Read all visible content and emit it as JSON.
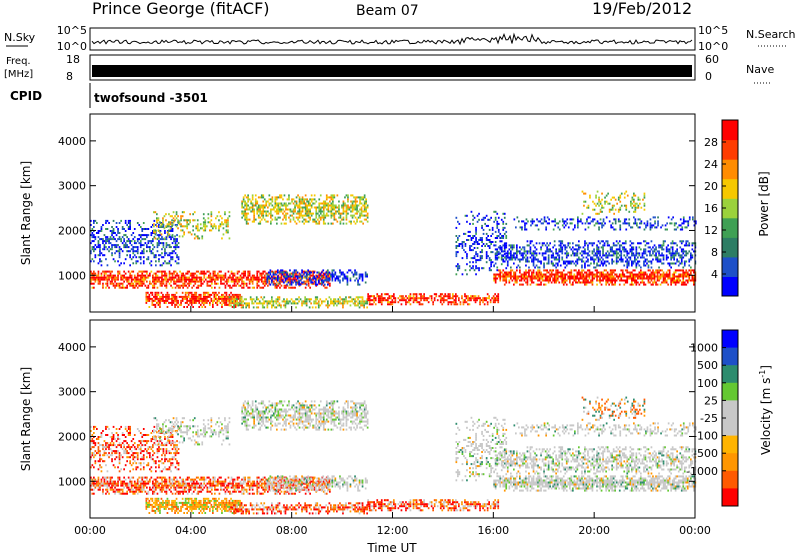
{
  "header": {
    "station": "Prince George (fitACF)",
    "beam": "Beam 07",
    "date": "19/Feb/2012"
  },
  "sky_panel": {
    "left_label": "N.Sky",
    "right_label": "N.Search",
    "left_ticks": [
      "10^5",
      "10^0"
    ],
    "right_ticks": [
      "10^5",
      "10^0"
    ]
  },
  "freq_panel": {
    "left_label_1": "Freq.",
    "left_label_2": "[MHz]",
    "right_label": "Nave",
    "left_ticks": [
      "18",
      "8"
    ],
    "right_ticks": [
      "60",
      "0"
    ]
  },
  "cpid_panel": {
    "label": "CPID",
    "value": "twofsound -3501"
  },
  "colors": {
    "power": [
      "#0000ff",
      "#1e50c8",
      "#2d7d64",
      "#3fa054",
      "#9bd23c",
      "#f5c800",
      "#ff8c00",
      "#ff3c00",
      "#ff0000"
    ],
    "velocity": [
      "#ff0000",
      "#ff5a00",
      "#ff9600",
      "#ffb400",
      "#c8c8c8",
      "#c8c8c8",
      "#64c832",
      "#2d8c6e",
      "#1e50c8",
      "#0000ff"
    ]
  },
  "chart_data": [
    {
      "type": "heatmap",
      "title": "",
      "xlabel": "",
      "ylabel": "Slant Range [km]",
      "xlim": [
        "00:00",
        "24:00"
      ],
      "ylim": [
        180,
        4600
      ],
      "x_ticks": [
        "00:00",
        "04:00",
        "08:00",
        "12:00",
        "16:00",
        "20:00",
        "00:00"
      ],
      "y_ticks": [
        1000,
        2000,
        3000,
        4000
      ],
      "colorbar": {
        "label": "Power [dB]",
        "range": [
          0,
          32
        ],
        "ticks": [
          4,
          8,
          12,
          16,
          20,
          24,
          28
        ]
      }
    },
    {
      "type": "heatmap",
      "title": "",
      "xlabel": "Time UT",
      "ylabel": "Slant Range [km]",
      "xlim": [
        "00:00",
        "24:00"
      ],
      "ylim": [
        180,
        4600
      ],
      "x_ticks": [
        "00:00",
        "04:00",
        "08:00",
        "12:00",
        "16:00",
        "20:00",
        "00:00"
      ],
      "y_ticks": [
        1000,
        2000,
        3000,
        4000
      ],
      "colorbar": {
        "label": "Velocity [m s^-1]",
        "ticks": [
          "1000",
          "500",
          "100",
          "25",
          "-25",
          "-100",
          "-500",
          "-1000"
        ]
      }
    }
  ]
}
